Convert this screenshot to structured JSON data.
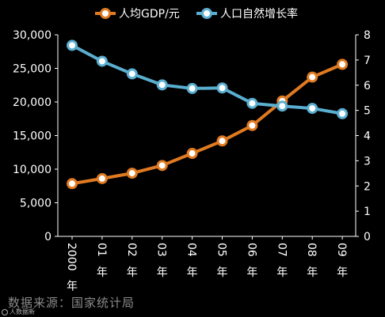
{
  "chart_data": {
    "type": "line",
    "categories": [
      [
        "2000",
        "年"
      ],
      [
        "01",
        "年"
      ],
      [
        "02",
        "年"
      ],
      [
        "03",
        "年"
      ],
      [
        "04",
        "年"
      ],
      [
        "05",
        "年"
      ],
      [
        "06",
        "年"
      ],
      [
        "07",
        "年"
      ],
      [
        "08",
        "年"
      ],
      [
        "09",
        "年"
      ]
    ],
    "series": [
      {
        "name": "人均GDP/元",
        "axis": "left",
        "color": "#e07a21",
        "values": [
          7850,
          8600,
          9400,
          10550,
          12350,
          14200,
          16500,
          20150,
          23700,
          25600
        ]
      },
      {
        "name": "人口自然增长率",
        "axis": "right",
        "color": "#5aaed0",
        "values": [
          7.58,
          6.95,
          6.45,
          6.01,
          5.87,
          5.89,
          5.28,
          5.17,
          5.08,
          4.87
        ]
      }
    ],
    "y_left": {
      "min": 0,
      "max": 30000,
      "ticks": [
        "0",
        "5,000",
        "10,000",
        "15,000",
        "20,000",
        "25,000",
        "30,000"
      ]
    },
    "y_right": {
      "min": 0,
      "max": 8,
      "ticks": [
        "0",
        "1",
        "2",
        "3",
        "4",
        "5",
        "6",
        "7",
        "8"
      ]
    },
    "grid": false,
    "legend_position": "top"
  },
  "source_text": "数据来源：国家统计局",
  "watermark_text": "人数据新"
}
